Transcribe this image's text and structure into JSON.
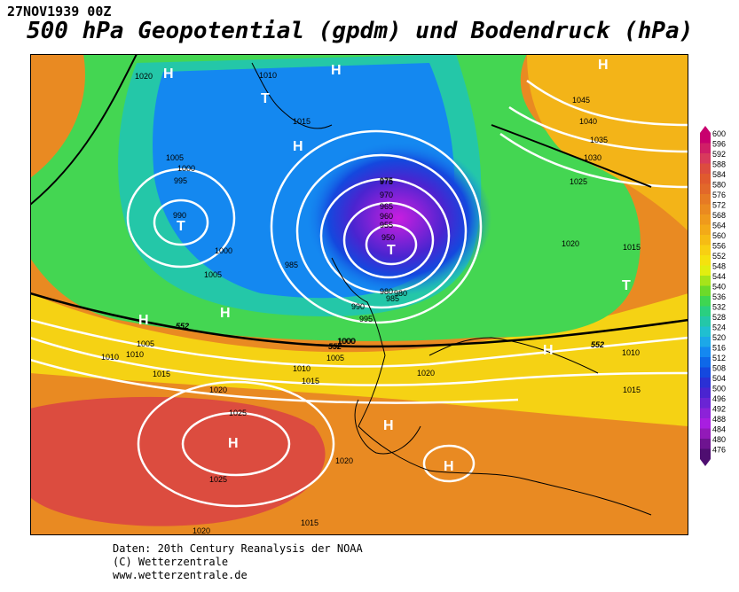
{
  "header": {
    "date": "27NOV1939 00Z",
    "title": "500 hPa Geopotential (gpdm) und Bodendruck (hPa)"
  },
  "footer": {
    "line1": "Daten: 20th Century Reanalysis der NOAA",
    "line2": "(C) Wetterzentrale",
    "line3": "www.wetterzentrale.de"
  },
  "legend": {
    "levels": [
      "600",
      "596",
      "592",
      "588",
      "584",
      "580",
      "576",
      "572",
      "568",
      "564",
      "560",
      "556",
      "552",
      "548",
      "544",
      "540",
      "536",
      "532",
      "528",
      "524",
      "520",
      "516",
      "512",
      "508",
      "504",
      "500",
      "496",
      "492",
      "488",
      "484",
      "480",
      "476"
    ],
    "colors": [
      "#c8006e",
      "#d01f67",
      "#d83a5c",
      "#dc4c3f",
      "#e05a2e",
      "#e2682a",
      "#e67a24",
      "#ea8a20",
      "#ef9a1c",
      "#f3aa18",
      "#f6bc14",
      "#f8d012",
      "#f5e20e",
      "#e2ee10",
      "#a6e41a",
      "#6cda2a",
      "#3ed652",
      "#2acf80",
      "#24c7a8",
      "#20bfd0",
      "#1ca8e8",
      "#1488f0",
      "#0e68e8",
      "#1448de",
      "#2a30d4",
      "#4a24d0",
      "#6a24d4",
      "#8c22d8",
      "#a81ee0",
      "#921ab8",
      "#6e1490",
      "#4e0e70"
    ]
  },
  "map": {
    "pressure_labels": [
      "1020",
      "1010",
      "1015",
      "1005",
      "1000",
      "995",
      "990",
      "985",
      "980",
      "975",
      "970",
      "965",
      "960",
      "955",
      "950",
      "1045",
      "1040",
      "1035",
      "1030",
      "1025",
      "1020",
      "1015",
      "1010",
      "1000",
      "1005",
      "1010",
      "1015",
      "1020",
      "1025",
      "1020",
      "1015",
      "1010",
      "1005",
      "1000",
      "995",
      "990",
      "985",
      "980",
      "975",
      "1015",
      "1020",
      "1025",
      "1020",
      "1015",
      "1010",
      "1000",
      "1005"
    ],
    "height_labels": [
      "552",
      "552",
      "552"
    ],
    "centers": [
      "H",
      "T",
      "H",
      "H",
      "T",
      "H",
      "T",
      "H",
      "H",
      "T",
      "H",
      "H",
      "H",
      "H"
    ]
  }
}
